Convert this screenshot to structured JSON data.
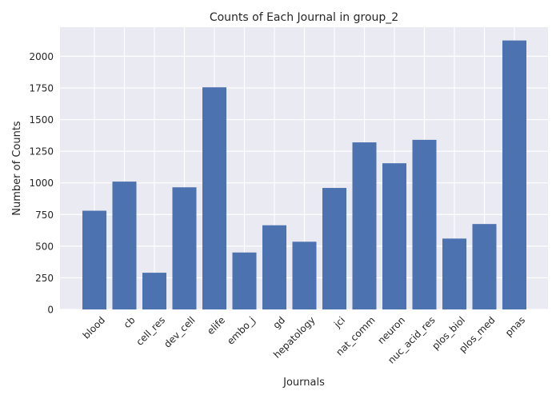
{
  "chart_data": {
    "type": "bar",
    "title": "Counts of Each Journal in group_2",
    "xlabel": "Journals",
    "ylabel": "Number of Counts",
    "categories": [
      "blood",
      "cb",
      "cell_res",
      "dev_cell",
      "elife",
      "embo_j",
      "gd",
      "hepatology",
      "jci",
      "nat_comm",
      "neuron",
      "nuc_acid_res",
      "plos_biol",
      "plos_med",
      "pnas"
    ],
    "values": [
      780,
      1010,
      290,
      965,
      1755,
      450,
      665,
      535,
      960,
      1320,
      1155,
      1340,
      560,
      675,
      2125
    ],
    "yticks": [
      0,
      250,
      500,
      750,
      1000,
      1250,
      1500,
      1750,
      2000
    ],
    "ylim": [
      0,
      2230
    ],
    "grid": true,
    "legend": "none",
    "colors": {
      "bar": "#4c72b0",
      "plot_background": "#eaeaf2",
      "grid": "#ffffff",
      "text": "#262626"
    }
  }
}
